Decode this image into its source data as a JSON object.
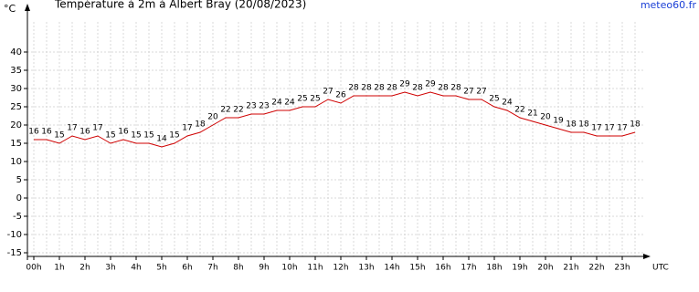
{
  "chart_data": {
    "type": "line",
    "title": "Température à 2m à Albert Bray (20/08/2023)",
    "y_label": "°C",
    "x_label": "UTC",
    "source": "meteo60.fr",
    "categories": [
      "00h",
      null,
      "1h",
      null,
      "2h",
      null,
      "3h",
      null,
      "4h",
      null,
      "5h",
      null,
      "6h",
      null,
      "7h",
      null,
      "8h",
      null,
      "9h",
      null,
      "10h",
      null,
      "11h",
      null,
      "12h",
      null,
      "13h",
      null,
      "14h",
      null,
      "15h",
      null,
      "16h",
      null,
      "17h",
      null,
      "18h",
      null,
      "19h",
      null,
      "20h",
      null,
      "21h",
      null,
      "22h",
      null,
      "23h",
      null
    ],
    "series": [
      {
        "name": "Température",
        "color": "#d00000",
        "values": [
          16,
          16,
          15,
          17,
          16,
          17,
          15,
          16,
          15,
          15,
          14,
          15,
          17,
          18,
          20,
          22,
          22,
          23,
          23,
          24,
          24,
          25,
          25,
          27,
          26,
          28,
          28,
          28,
          28,
          29,
          28,
          29,
          28,
          28,
          27,
          27,
          25,
          24,
          22,
          21,
          20,
          19,
          18,
          18,
          17,
          17,
          17,
          18
        ]
      }
    ],
    "ylim": [
      -16,
      52
    ],
    "yticks": [
      -15,
      -10,
      -5,
      0,
      5,
      10,
      15,
      20,
      25,
      30,
      35,
      40
    ],
    "grid": true
  }
}
